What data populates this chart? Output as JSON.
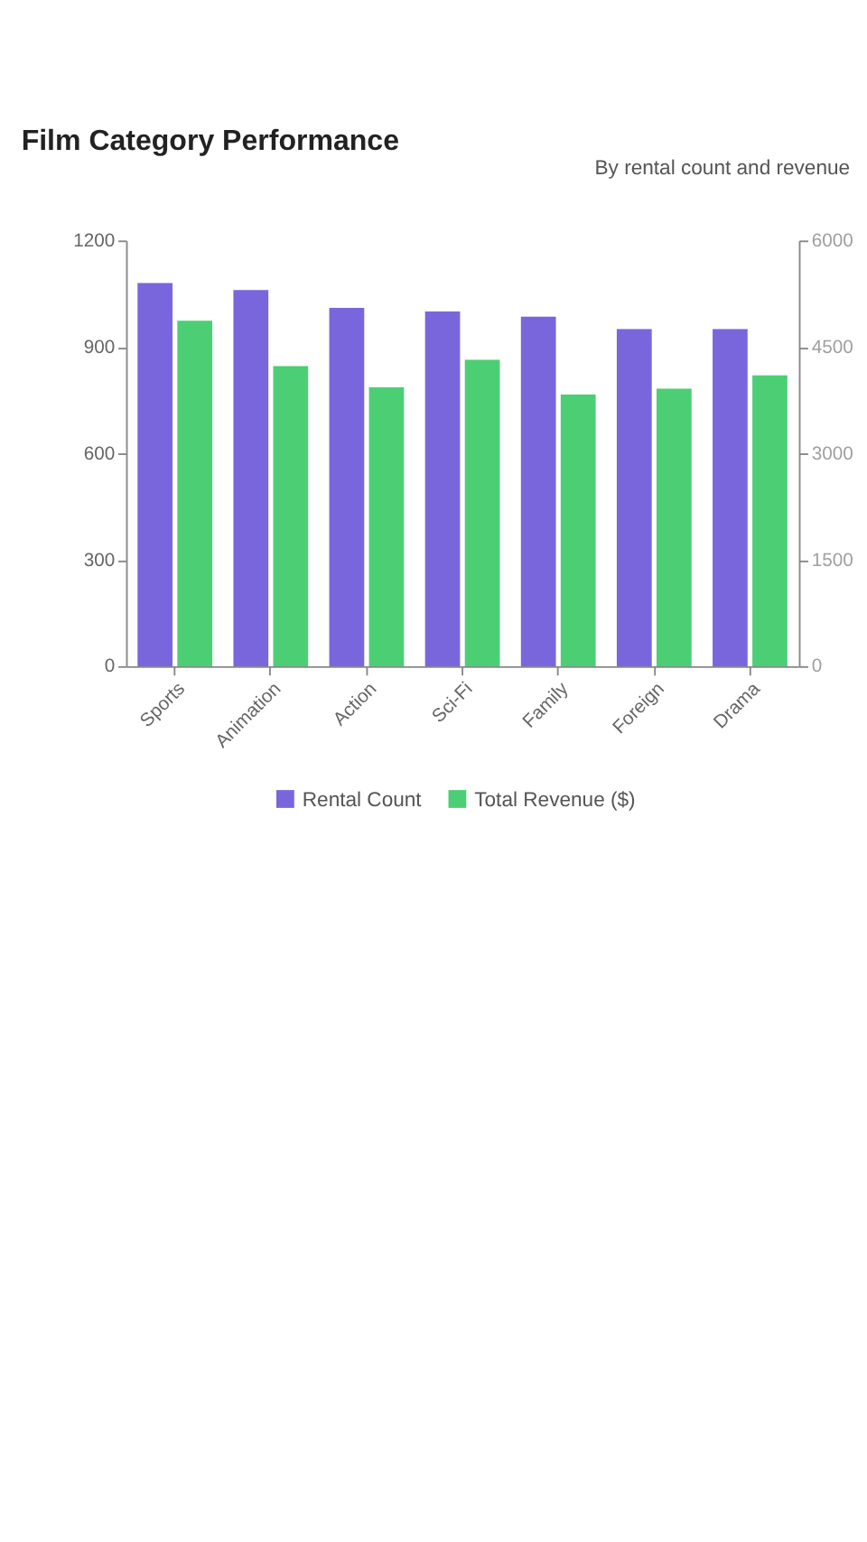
{
  "chart_data": {
    "type": "bar",
    "title": "Film Category Performance",
    "subtitle": "By rental count and revenue",
    "categories": [
      "Sports",
      "Animation",
      "Action",
      "Sci-Fi",
      "Family",
      "Foreign",
      "Drama"
    ],
    "series": [
      {
        "name": "Rental Count",
        "color": "#7a66dc",
        "values": [
          1080,
          1060,
          1010,
          1000,
          985,
          950,
          950
        ]
      },
      {
        "name": "Total Revenue ($)",
        "color": "#4ccf74",
        "values": [
          4870,
          4230,
          3930,
          4320,
          3830,
          3910,
          4100
        ],
        "axis": "y2"
      }
    ],
    "ylim": [
      0,
      1200
    ],
    "yticks": [
      0,
      300,
      600,
      900,
      1200
    ],
    "y2lim": [
      0,
      6000
    ],
    "y2ticks": [
      0,
      1500,
      3000,
      4500,
      6000
    ],
    "legend": "bottom",
    "grid": false
  }
}
